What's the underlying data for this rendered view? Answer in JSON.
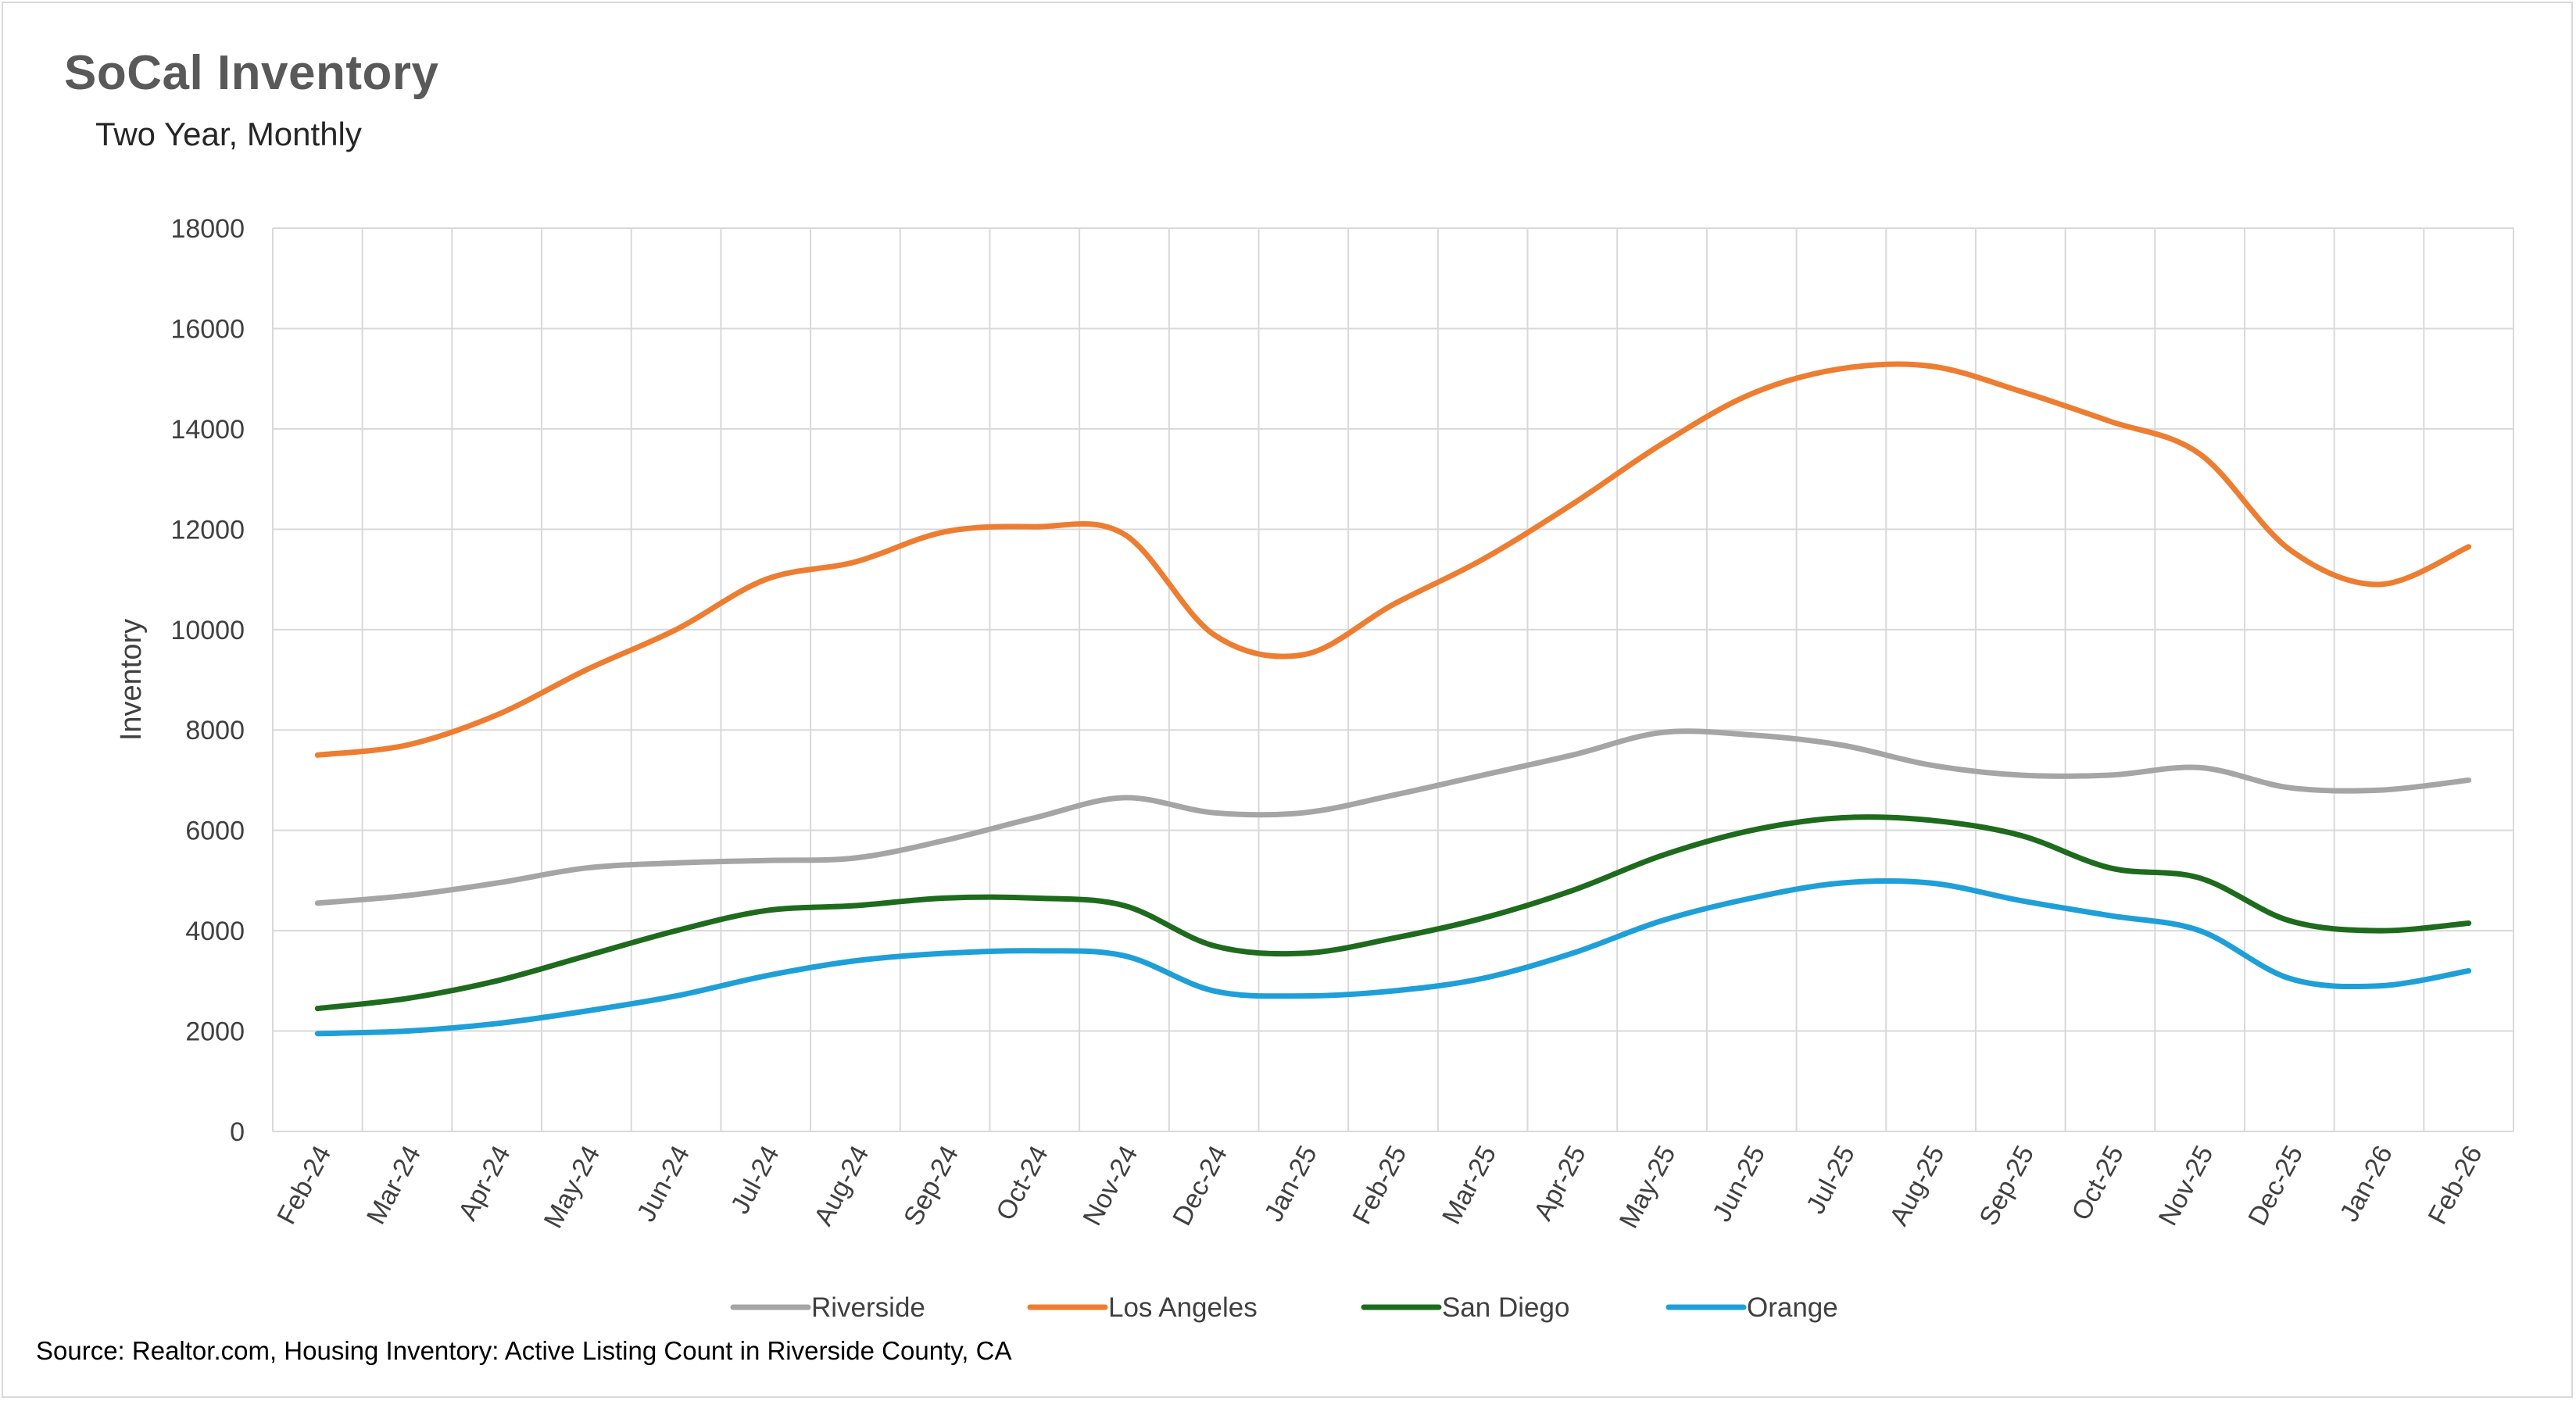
{
  "chart_data": {
    "type": "line",
    "title": "SoCal Inventory",
    "subtitle": "Two Year, Monthly",
    "ylabel": "Inventory",
    "xlabel": "",
    "ylim": [
      0,
      18000
    ],
    "yticks": [
      0,
      2000,
      4000,
      6000,
      8000,
      10000,
      12000,
      14000,
      16000,
      18000
    ],
    "grid": true,
    "legend_position": "bottom",
    "categories": [
      "Feb-24",
      "Mar-24",
      "Apr-24",
      "May-24",
      "Jun-24",
      "Jul-24",
      "Aug-24",
      "Sep-24",
      "Oct-24",
      "Nov-24",
      "Dec-24",
      "Jan-25",
      "Feb-25",
      "Mar-25",
      "Apr-25",
      "May-25",
      "Jun-25",
      "Jul-25",
      "Aug-25",
      "Sep-25",
      "Oct-25",
      "Nov-25",
      "Dec-25",
      "Jan-26",
      "Feb-26"
    ],
    "series": [
      {
        "name": "Riverside",
        "color": "#a5a5a5",
        "values": [
          4550,
          4700,
          4950,
          5250,
          5350,
          5400,
          5450,
          5800,
          6250,
          6650,
          6350,
          6350,
          6700,
          7100,
          7500,
          7950,
          7900,
          7700,
          7300,
          7100,
          7100,
          7250,
          6850,
          6800,
          7000
        ]
      },
      {
        "name": "Los Angeles",
        "color": "#ed7d31",
        "values": [
          7500,
          7700,
          8300,
          9200,
          10000,
          11000,
          11350,
          11950,
          12050,
          11900,
          9900,
          9500,
          10500,
          11400,
          12500,
          13700,
          14700,
          15200,
          15250,
          14750,
          14150,
          13500,
          11600,
          10900,
          11650
        ]
      },
      {
        "name": "San Diego",
        "color": "#1e6b1e",
        "values": [
          2450,
          2650,
          3000,
          3500,
          4000,
          4400,
          4500,
          4650,
          4650,
          4500,
          3700,
          3550,
          3850,
          4250,
          4800,
          5500,
          6000,
          6250,
          6200,
          5900,
          5250,
          5050,
          4200,
          4000,
          4150
        ]
      },
      {
        "name": "Orange",
        "color": "#1f9fd8",
        "values": [
          1950,
          2000,
          2150,
          2400,
          2700,
          3100,
          3400,
          3550,
          3600,
          3500,
          2800,
          2700,
          2800,
          3050,
          3550,
          4200,
          4650,
          4950,
          4950,
          4600,
          4300,
          4000,
          3050,
          2900,
          3200
        ]
      }
    ]
  },
  "source": "Source: Realtor.com, Housing Inventory: Active Listing Count in Riverside County, CA"
}
